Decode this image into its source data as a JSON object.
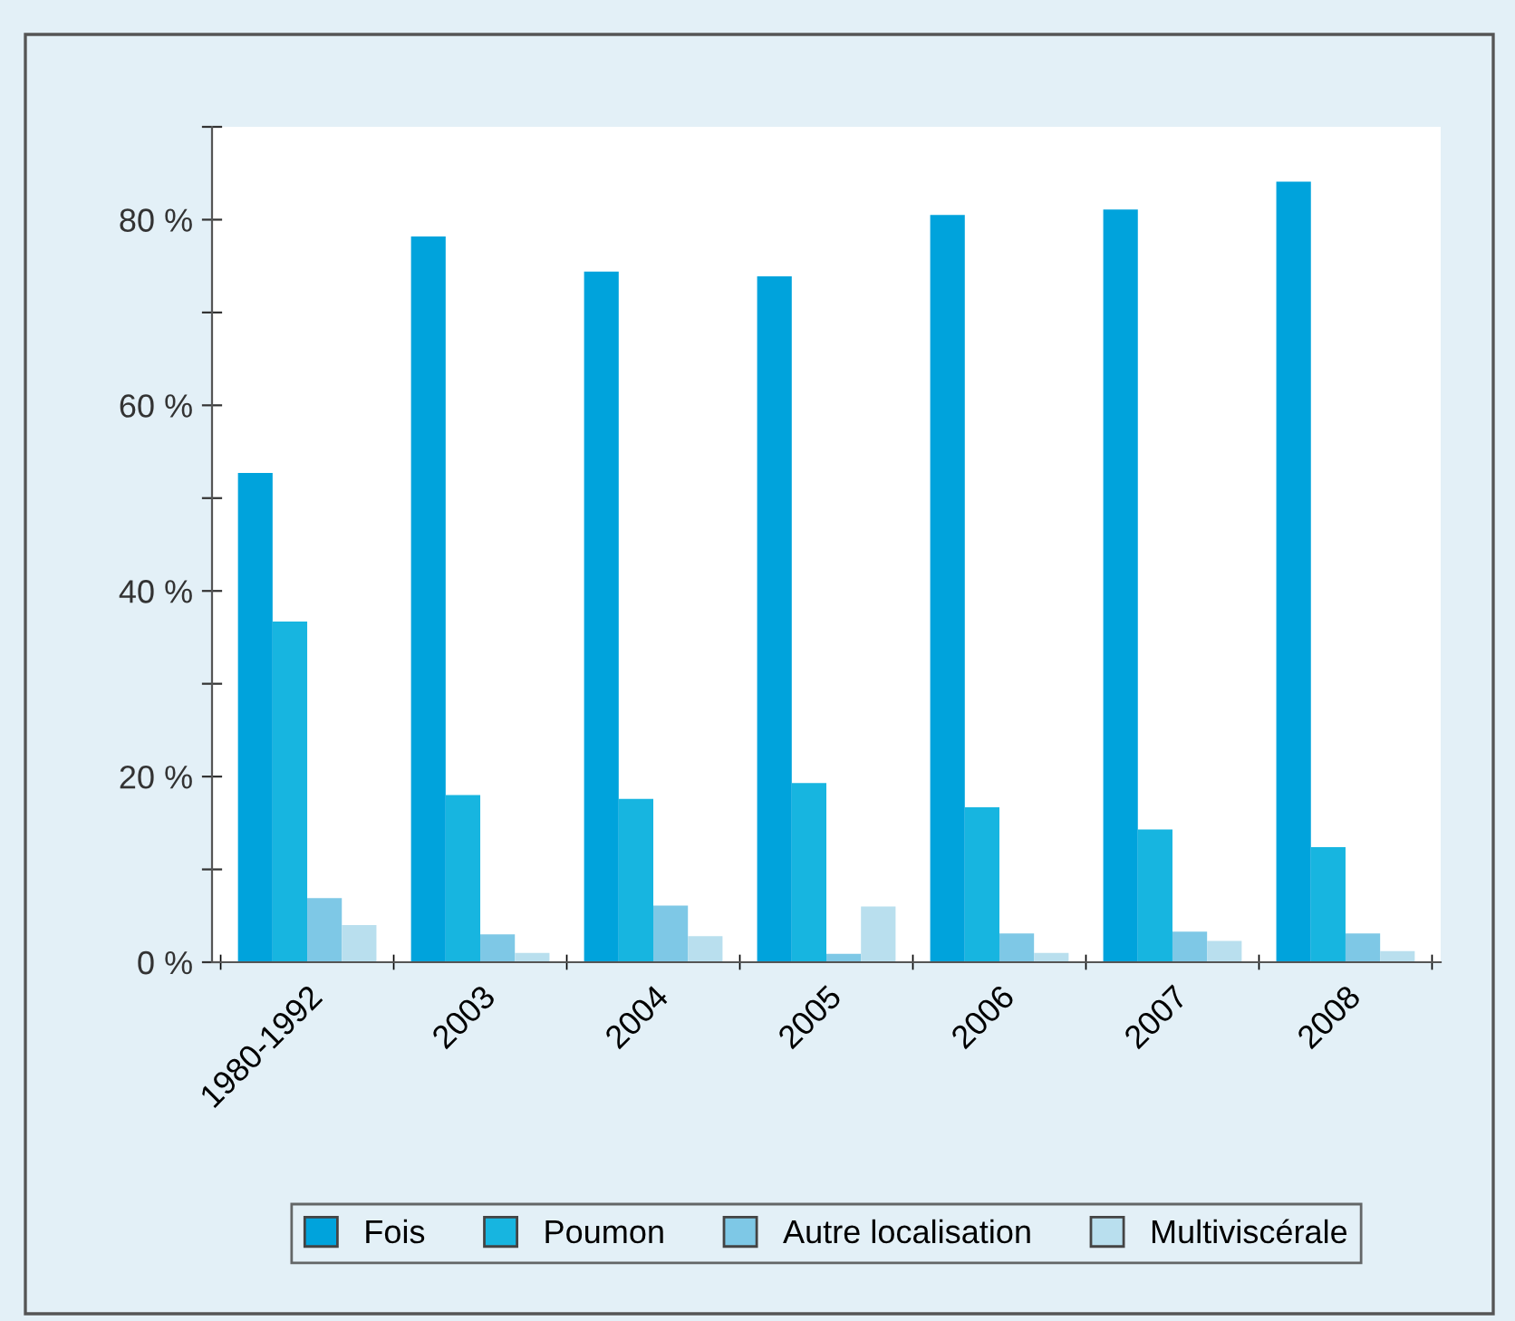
{
  "chart_data": {
    "type": "bar",
    "categories": [
      "1980-1992",
      "2003",
      "2004",
      "2005",
      "2006",
      "2007",
      "2008"
    ],
    "series": [
      {
        "name": "Fois",
        "color": "#00a3dc",
        "values": [
          52.7,
          78.2,
          74.4,
          73.9,
          80.5,
          81.1,
          84.1
        ]
      },
      {
        "name": "Poumon",
        "color": "#17b5e0",
        "values": [
          36.7,
          18.0,
          17.6,
          19.3,
          16.7,
          14.3,
          12.4
        ]
      },
      {
        "name": "Autre localisation",
        "color": "#7ec8e6",
        "values": [
          6.9,
          3.0,
          6.1,
          0.9,
          3.1,
          3.3,
          3.1
        ]
      },
      {
        "name": "Multiviscérale",
        "color": "#b9dfee",
        "values": [
          4.0,
          1.0,
          2.8,
          6.0,
          1.0,
          2.3,
          1.2
        ]
      }
    ],
    "ylim": [
      0,
      90
    ],
    "yticks": [
      {
        "value": 0,
        "label": "0 %"
      },
      {
        "value": 10,
        "label": null
      },
      {
        "value": 20,
        "label": "20 %"
      },
      {
        "value": 30,
        "label": null
      },
      {
        "value": 40,
        "label": "40 %"
      },
      {
        "value": 50,
        "label": null
      },
      {
        "value": 60,
        "label": "60 %"
      },
      {
        "value": 70,
        "label": null
      },
      {
        "value": 80,
        "label": "80 %"
      },
      {
        "value": 90,
        "label": null
      }
    ],
    "grid": false,
    "legend": "bottom"
  }
}
